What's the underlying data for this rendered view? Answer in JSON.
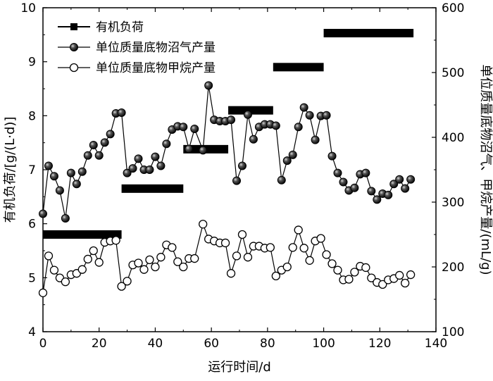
{
  "chart_data": {
    "type": "line",
    "xlabel": "运行时间/d",
    "ylabel_left": "有机负荷/[g/(L·d)]",
    "ylabel_right": "单位质量底物沼气、甲烷产量/(mL/g)",
    "xlim": [
      0,
      140
    ],
    "ylim_left": [
      4,
      10
    ],
    "ylim_right": [
      100,
      600
    ],
    "x_ticks": [
      "0",
      "20",
      "40",
      "60",
      "80",
      "100",
      "120",
      "140"
    ],
    "y_ticks_left": [
      "4",
      "5",
      "6",
      "7",
      "8",
      "9",
      "10"
    ],
    "y_ticks_right": [
      "100",
      "200",
      "300",
      "400",
      "500",
      "600"
    ],
    "legend_position": "top-left",
    "series": [
      {
        "name": "有机负荷",
        "axis": "left",
        "style": "step",
        "segments": [
          {
            "x0": 0,
            "x1": 28,
            "y": 5.8
          },
          {
            "x0": 28,
            "x1": 50,
            "y": 6.65
          },
          {
            "x0": 50,
            "x1": 66,
            "y": 7.38
          },
          {
            "x0": 66,
            "x1": 82,
            "y": 8.1
          },
          {
            "x0": 82,
            "x1": 100,
            "y": 8.9
          },
          {
            "x0": 100,
            "x1": 132,
            "y": 9.53
          }
        ]
      },
      {
        "name": "单位质量底物沼气产量",
        "axis": "right",
        "style": "line-marker",
        "marker": "filled-circle",
        "x": [
          0,
          2,
          4,
          6,
          8,
          10,
          12,
          14,
          16,
          18,
          20,
          22,
          24,
          26,
          28,
          30,
          32,
          34,
          36,
          38,
          40,
          42,
          44,
          46,
          48,
          50,
          52,
          54,
          57,
          59,
          61,
          63,
          65,
          67,
          69,
          71,
          73,
          75,
          77,
          79,
          81,
          83,
          85,
          87,
          89,
          91,
          93,
          95,
          97,
          99,
          101,
          103,
          105,
          107,
          109,
          111,
          113,
          115,
          117,
          119,
          121,
          123,
          125,
          127,
          129,
          131
        ],
        "y": [
          282,
          356,
          340,
          318,
          275,
          345,
          328,
          347,
          372,
          388,
          372,
          392,
          405,
          437,
          438,
          345,
          352,
          367,
          350,
          350,
          370,
          356,
          390,
          412,
          417,
          416,
          382,
          413,
          380,
          480,
          427,
          425,
          425,
          427,
          333,
          356,
          435,
          397,
          416,
          420,
          420,
          418,
          334,
          364,
          373,
          416,
          446,
          434,
          396,
          433,
          434,
          371,
          345,
          331,
          318,
          322,
          343,
          345,
          317,
          304,
          313,
          311,
          328,
          335,
          321,
          335
        ]
      },
      {
        "name": "单位质量底物甲烷产量",
        "axis": "right",
        "style": "line-marker",
        "marker": "open-circle",
        "x": [
          0,
          2,
          4,
          6,
          8,
          10,
          12,
          14,
          16,
          18,
          20,
          22,
          24,
          26,
          28,
          30,
          32,
          34,
          36,
          38,
          40,
          42,
          44,
          46,
          48,
          50,
          52,
          54,
          57,
          59,
          61,
          63,
          65,
          67,
          69,
          71,
          73,
          75,
          77,
          79,
          81,
          83,
          85,
          87,
          89,
          91,
          93,
          95,
          97,
          99,
          101,
          103,
          105,
          107,
          109,
          111,
          113,
          115,
          117,
          119,
          121,
          123,
          125,
          127,
          129,
          131
        ],
        "y": [
          160,
          217,
          195,
          183,
          177,
          188,
          190,
          196,
          212,
          225,
          207,
          238,
          240,
          241,
          170,
          178,
          203,
          206,
          196,
          211,
          200,
          215,
          234,
          230,
          208,
          200,
          213,
          213,
          266,
          243,
          240,
          237,
          237,
          190,
          217,
          250,
          215,
          232,
          232,
          229,
          230,
          186,
          195,
          200,
          230,
          257,
          229,
          210,
          240,
          244,
          219,
          205,
          195,
          180,
          181,
          192,
          201,
          199,
          183,
          176,
          173,
          180,
          182,
          187,
          175,
          188
        ]
      }
    ]
  }
}
